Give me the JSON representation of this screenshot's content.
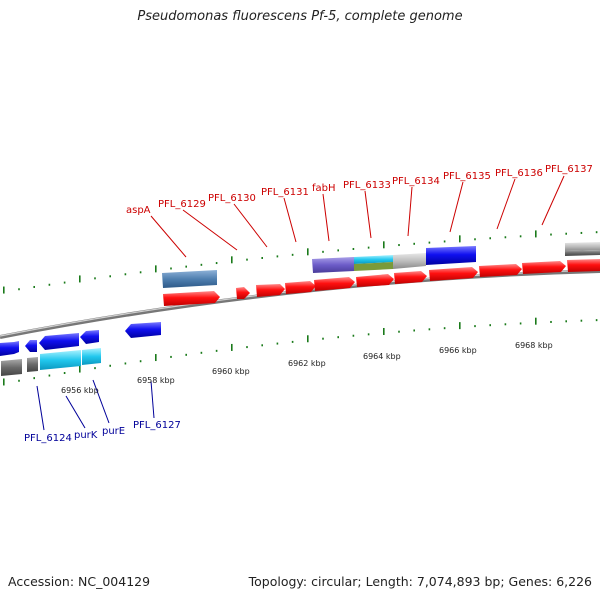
{
  "title": "Pseudomonas fluorescens Pf-5, complete genome",
  "footer": {
    "accession": "Accession: NC_004129",
    "summary": "Topology: circular; Length: 7,074,893 bp; Genes: 6,226"
  },
  "colors": {
    "forward_label": "#cc0000",
    "reverse_label": "#000099",
    "forward_gene": "#ff0000",
    "reverse_gene": "#0000ee",
    "backbone": "#888888",
    "tick": "#1a7a1a"
  },
  "scale_labels": [
    "6956 kbp",
    "6958 kbp",
    "6960 kbp",
    "6962 kbp",
    "6964 kbp",
    "6966 kbp",
    "6968 kbp"
  ],
  "forward_gene_labels": [
    "aspA",
    "PFL_6129",
    "PFL_6130",
    "PFL_6131",
    "fabH",
    "PFL_6133",
    "PFL_6134",
    "PFL_6135",
    "PFL_6136",
    "PFL_6137"
  ],
  "reverse_gene_labels": [
    "PFL_6124",
    "purK",
    "purE",
    "PFL_6127"
  ]
}
